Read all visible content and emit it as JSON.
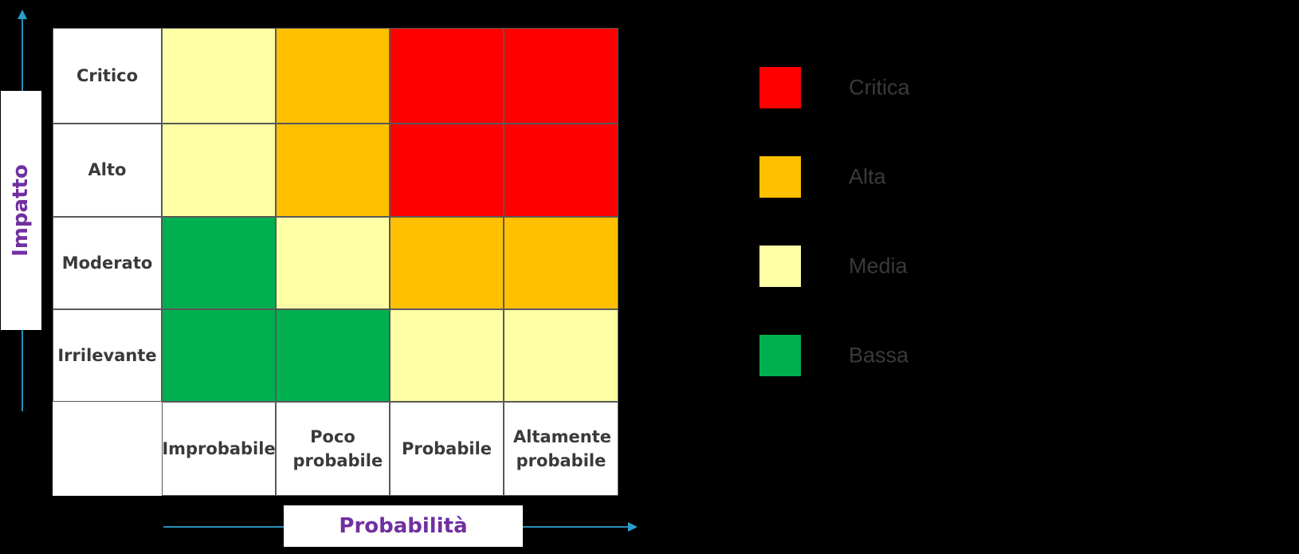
{
  "axes": {
    "y_title": "Impatto",
    "x_title": "Probabilità"
  },
  "impact_levels": [
    "Critico",
    "Alto",
    "Moderato",
    "Irrilevante"
  ],
  "probability_levels": [
    "Improbabile",
    "Poco probabile",
    "Probabile",
    "Altamente probabile"
  ],
  "matrix": [
    [
      "media",
      "alta",
      "critica",
      "critica"
    ],
    [
      "media",
      "alta",
      "critica",
      "critica"
    ],
    [
      "bassa",
      "media",
      "alta",
      "alta"
    ],
    [
      "bassa",
      "bassa",
      "media",
      "media"
    ]
  ],
  "legend": [
    {
      "key": "critica",
      "label": "Critica",
      "color": "#ff0000"
    },
    {
      "key": "alta",
      "label": "Alta",
      "color": "#ffc000"
    },
    {
      "key": "media",
      "label": "Media",
      "color": "#ffffa6"
    },
    {
      "key": "bassa",
      "label": "Bassa",
      "color": "#00b050"
    }
  ],
  "colors": {
    "axis_title": "#7030a0",
    "axis_line": "#2a8fb8",
    "background": "#000000"
  }
}
